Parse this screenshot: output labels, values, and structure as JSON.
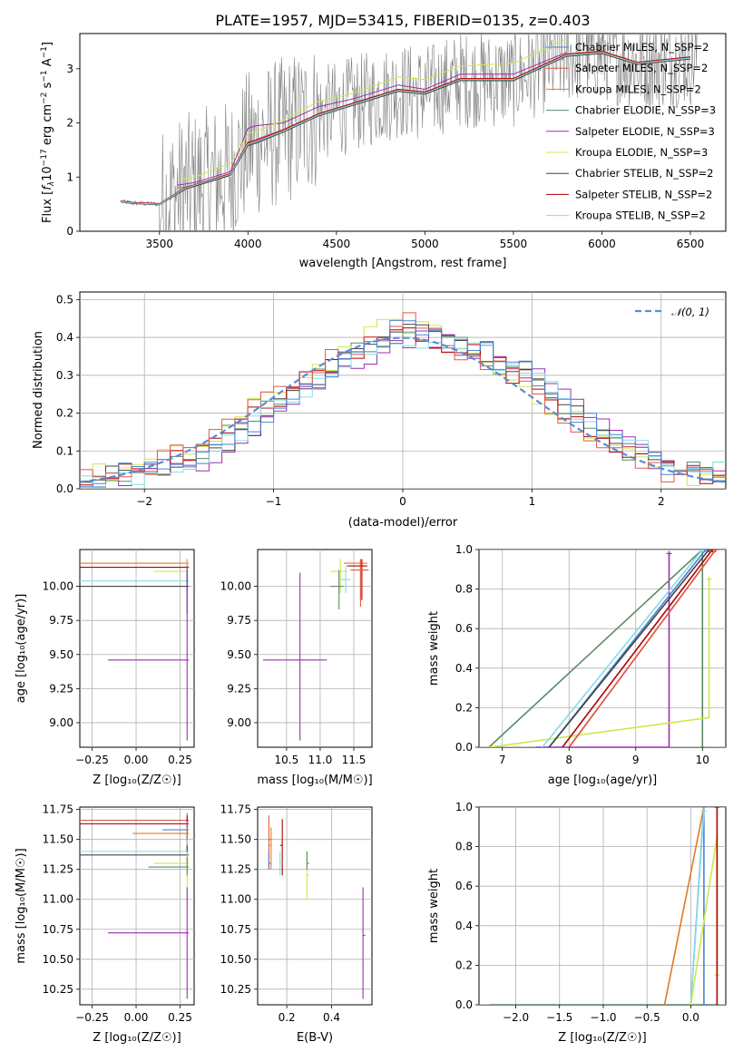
{
  "colors": {
    "chabrier_miles": "#4a83d6",
    "salpeter_miles": "#e0584a",
    "kroupa_miles": "#e07b20",
    "chabrier_elodie": "#5a8a66",
    "salpeter_elodie": "#9b2fae",
    "kroupa_elodie": "#cde84a",
    "chabrier_stelib": "#444444",
    "salpeter_stelib": "#b00000",
    "kroupa_stelib": "#86dce8",
    "observed": "#808080",
    "gaussian": "#5b8ad6",
    "grid": "#b0b0b0"
  },
  "chart_data": [
    {
      "type": "line",
      "title": "PLATE=1957, MJD=53415, FIBERID=0135, z=0.403",
      "xlabel": "wavelength [Angstrom, rest frame]",
      "ylabel": "Flux [f_λ 10^-17 erg cm^-2 s^-1 A^-1]",
      "xlim": [
        3050,
        6700
      ],
      "ylim": [
        0,
        3.65
      ],
      "xticks": [
        "3500",
        "4000",
        "4500",
        "5000",
        "5500",
        "6000",
        "6500"
      ],
      "yticks": [
        "0",
        "1",
        "2",
        "3"
      ],
      "grid": false,
      "legend_position": "top-right",
      "series": [
        {
          "name": "Chabrier MILES, N_SSP=2",
          "x": [
            3280,
            3350,
            3500,
            3650,
            3700,
            3900,
            4000,
            4050,
            4200,
            4400,
            4600,
            4850,
            5000,
            5200,
            5500,
            5800,
            6000,
            6200,
            6500
          ],
          "y": [
            0.55,
            0.52,
            0.5,
            0.8,
            0.85,
            1.05,
            1.6,
            1.65,
            1.85,
            2.15,
            2.35,
            2.6,
            2.55,
            2.8,
            2.8,
            3.25,
            3.3,
            3.1,
            3.2
          ]
        },
        {
          "name": "Salpeter MILES, N_SSP=2",
          "x": [
            3280,
            3350,
            3500,
            3650,
            3700,
            3900,
            4000,
            4050,
            4200,
            4400,
            4600,
            4850,
            5000,
            5200,
            5500,
            5800,
            6000,
            6200,
            6500
          ],
          "y": [
            0.56,
            0.53,
            0.51,
            0.82,
            0.86,
            1.07,
            1.65,
            1.7,
            1.88,
            2.17,
            2.37,
            2.62,
            2.57,
            2.82,
            2.82,
            3.27,
            3.33,
            3.12,
            3.22
          ]
        },
        {
          "name": "Kroupa MILES, N_SSP=2",
          "x": [
            3280,
            3350,
            3500,
            3650,
            3700,
            3900,
            4000,
            4050,
            4200,
            4400,
            4600,
            4850,
            5000,
            5200,
            5500,
            5800,
            6000,
            6200,
            6500
          ],
          "y": [
            0.55,
            0.52,
            0.5,
            0.8,
            0.85,
            1.06,
            1.62,
            1.67,
            1.86,
            2.16,
            2.36,
            2.61,
            2.56,
            2.81,
            2.81,
            3.26,
            3.31,
            3.11,
            3.21
          ]
        },
        {
          "name": "Chabrier ELODIE, N_SSP=3",
          "x": [
            3600,
            3700,
            3900,
            4000,
            4050,
            4200,
            4400,
            4600,
            4850,
            5000,
            5200,
            5500,
            5800
          ],
          "y": [
            0.8,
            0.84,
            1.04,
            1.6,
            1.66,
            1.86,
            2.16,
            2.36,
            2.6,
            2.55,
            2.8,
            2.8,
            3.25
          ]
        },
        {
          "name": "Salpeter ELODIE, N_SSP=3",
          "x": [
            3600,
            3700,
            3900,
            4000,
            4050,
            4200,
            4400,
            4600,
            4850,
            5000,
            5200,
            5500,
            5800
          ],
          "y": [
            0.85,
            0.9,
            1.1,
            1.9,
            1.95,
            2.0,
            2.3,
            2.45,
            2.7,
            2.62,
            2.9,
            2.9,
            3.3
          ]
        },
        {
          "name": "Kroupa ELODIE, N_SSP=3",
          "x": [
            3600,
            3700,
            3900,
            4000,
            4050,
            4200,
            4400,
            4600,
            4850,
            5000,
            5200,
            5500,
            5800
          ],
          "y": [
            0.95,
            1.0,
            1.25,
            1.8,
            1.85,
            2.05,
            2.4,
            2.55,
            2.85,
            2.8,
            3.05,
            3.1,
            3.55
          ]
        },
        {
          "name": "Chabrier STELIB, N_SSP=2",
          "x": [
            3280,
            3350,
            3500,
            3650,
            3700,
            3900,
            4000,
            4050,
            4200,
            4400,
            4600,
            4850,
            5000,
            5200,
            5500,
            5800,
            6000,
            6200,
            6500
          ],
          "y": [
            0.54,
            0.51,
            0.49,
            0.78,
            0.83,
            1.03,
            1.58,
            1.63,
            1.83,
            2.13,
            2.33,
            2.58,
            2.53,
            2.78,
            2.78,
            3.23,
            3.28,
            3.08,
            3.18
          ]
        },
        {
          "name": "Salpeter STELIB, N_SSP=2",
          "x": [
            3280,
            3350,
            3500,
            3650,
            3700,
            3900,
            4000,
            4050,
            4200,
            4400,
            4600,
            4850,
            5000,
            5200,
            5500,
            5800,
            6000,
            6200,
            6500
          ],
          "y": [
            0.56,
            0.53,
            0.51,
            0.81,
            0.86,
            1.06,
            1.63,
            1.68,
            1.87,
            2.17,
            2.37,
            2.62,
            2.57,
            2.82,
            2.82,
            3.27,
            3.32,
            3.12,
            3.22
          ]
        },
        {
          "name": "Kroupa STELIB, N_SSP=2",
          "x": [
            3280,
            3350,
            3500,
            3650,
            3700,
            3900,
            4000,
            4050,
            4200,
            4400,
            4600,
            4850,
            5000,
            5200,
            5500,
            5800,
            6000,
            6200,
            6500
          ],
          "y": [
            0.55,
            0.52,
            0.5,
            0.8,
            0.85,
            1.05,
            1.61,
            1.66,
            1.85,
            2.15,
            2.35,
            2.6,
            2.55,
            2.8,
            2.8,
            3.25,
            3.3,
            3.1,
            3.2
          ]
        }
      ]
    },
    {
      "type": "line",
      "xlabel": "(data-model)/error",
      "ylabel": "Normed distribution",
      "xlim": [
        -2.5,
        2.5
      ],
      "ylim": [
        0,
        0.52
      ],
      "xticks": [
        "−2",
        "−1",
        "0",
        "1",
        "2"
      ],
      "yticks": [
        "0.0",
        "0.1",
        "0.2",
        "0.3",
        "0.4",
        "0.5"
      ],
      "grid": true,
      "legend_position": "top-right",
      "series": [
        {
          "name": "𝒩(0, 1)",
          "x": [
            -2.5,
            -2.0,
            -1.5,
            -1.0,
            -0.5,
            0,
            0.5,
            1.0,
            1.5,
            2.0,
            2.5
          ],
          "y": [
            0.0175,
            0.054,
            0.1295,
            0.242,
            0.352,
            0.399,
            0.352,
            0.242,
            0.1295,
            0.054,
            0.0175
          ]
        },
        {
          "x": [
            -2.5,
            -2.0,
            -1.5,
            -1.0,
            -0.5,
            0,
            0.5,
            1.0,
            1.5,
            2.0,
            2.5
          ],
          "y": [
            0.02,
            0.05,
            0.1,
            0.23,
            0.34,
            0.42,
            0.37,
            0.28,
            0.15,
            0.06,
            0.03
          ]
        },
        {
          "x": [
            -2.5,
            -2.0,
            -1.5,
            -1.0,
            -0.5,
            0,
            0.5,
            1.0,
            1.5,
            2.0,
            2.5
          ],
          "y": [
            0.01,
            0.04,
            0.08,
            0.2,
            0.31,
            0.4,
            0.38,
            0.3,
            0.17,
            0.07,
            0.04
          ]
        },
        {
          "x": [
            -2.5,
            -2.0,
            -1.5,
            -1.0,
            -0.5,
            0,
            0.5,
            1.0,
            1.5,
            2.0,
            2.5
          ],
          "y": [
            0.03,
            0.06,
            0.12,
            0.25,
            0.35,
            0.45,
            0.36,
            0.26,
            0.14,
            0.05,
            0.02
          ]
        },
        {
          "x": [
            -2.5,
            -2.0,
            -1.5,
            -1.0,
            -0.5,
            0,
            0.5,
            1.0,
            1.5,
            2.0,
            2.5
          ],
          "y": [
            0.02,
            0.05,
            0.1,
            0.2,
            0.33,
            0.43,
            0.39,
            0.3,
            0.16,
            0.06,
            0.03
          ]
        }
      ]
    },
    {
      "type": "scatter",
      "xlabel": "Z [log₁₀(Z/Z☉)]",
      "ylabel": "age  [log₁₀(age/yr)]",
      "xlim": [
        -0.32,
        0.33
      ],
      "ylim": [
        8.82,
        10.27
      ],
      "xticks": [
        "−0.25",
        "0.00",
        "0.25"
      ],
      "yticks": [
        "9.00",
        "9.25",
        "9.50",
        "9.75",
        "10.00"
      ]
    },
    {
      "type": "scatter",
      "xlabel": "mass [log₁₀(M/M☉)]",
      "xlim": [
        10.07,
        11.77
      ],
      "ylim": [
        8.82,
        10.27
      ],
      "xticks": [
        "10.5",
        "11.0",
        "11.5"
      ],
      "yticks": [
        "9.00",
        "9.25",
        "9.50",
        "9.75",
        "10.00"
      ]
    },
    {
      "type": "line",
      "xlabel": "age  [log₁₀(age/yr)]",
      "ylabel": "mass weight",
      "xlim": [
        6.65,
        10.35
      ],
      "ylim": [
        0,
        1.0
      ],
      "xticks": [
        "7",
        "8",
        "9",
        "10"
      ],
      "yticks": [
        "0.0",
        "0.2",
        "0.4",
        "0.6",
        "0.8",
        "1.0"
      ]
    },
    {
      "type": "scatter",
      "xlabel": "Z [log₁₀(Z/Z☉)]",
      "ylabel": "mass [log₁₀(M/M☉)]",
      "xlim": [
        -0.32,
        0.33
      ],
      "ylim": [
        10.12,
        11.77
      ],
      "xticks": [
        "−0.25",
        "0.00",
        "0.25"
      ],
      "yticks": [
        "10.25",
        "10.50",
        "10.75",
        "11.00",
        "11.25",
        "11.50",
        "11.75"
      ]
    },
    {
      "type": "scatter",
      "xlabel": "E(B-V)",
      "xlim": [
        0.07,
        0.58
      ],
      "ylim": [
        10.12,
        11.77
      ],
      "xticks": [
        "0.2",
        "0.4"
      ],
      "yticks": [
        "10.25",
        "10.50",
        "10.75",
        "11.00",
        "11.25",
        "11.50",
        "11.75"
      ]
    },
    {
      "type": "line",
      "xlabel": "Z [log₁₀(Z/Z☉)]",
      "ylabel": "mass weight",
      "xlim": [
        -2.42,
        0.4
      ],
      "ylim": [
        0,
        1.0
      ],
      "xticks": [
        "−2.0",
        "−1.5",
        "−1.0",
        "−0.5",
        "0.0"
      ],
      "yticks": [
        "0.0",
        "0.2",
        "0.4",
        "0.6",
        "0.8",
        "1.0"
      ]
    }
  ]
}
